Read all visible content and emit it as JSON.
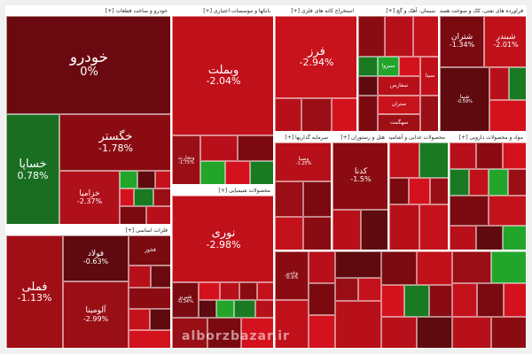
{
  "colors": {
    "dark_red": "#7a0a10",
    "red": "#b7101a",
    "bright_red": "#d3121e",
    "maroon": "#5e0a0e",
    "green": "#1a7a22",
    "bright_green": "#23a52c"
  },
  "sectors": {
    "auto": "خودرو و ساخت قطعات [+]",
    "banks": "بانکها و موسسات اعتباری [+]",
    "oil": "استخراج کانه های فلزی [+]",
    "cement": "سیمان، آهک و گچ [+]",
    "refinery": "فراورده های نفتی، کک و سوخت هسته ای [+]",
    "metals": "فلزات اساسی [+]",
    "chemicals": "محصولات شیمیایی [+]",
    "investment": "سرمایه گذاریها [+]",
    "holdings": "هتل و رستوران [+]",
    "food": "محصولات غذایی و آشامیدنی [+]",
    "pharma": "مواد و محصولات دارویی [+]"
  },
  "tiles": {
    "khodro": {
      "name": "خودرو",
      "pct": "0%"
    },
    "khegostar": {
      "name": "خگستر",
      "pct": "-1.78%"
    },
    "khesapa": {
      "name": "خساپا",
      "pct": "0.78%"
    },
    "kharamia": {
      "name": "خزامیا",
      "pct": "-2.37%"
    },
    "vebmellat": {
      "name": "وبملت",
      "pct": "-2.04%"
    },
    "vtejarat": {
      "name": "وتجارت",
      "pct": "-1.75%"
    },
    "far": {
      "name": "فرز",
      "pct": "-2.94%"
    },
    "shatran": {
      "name": "شتران",
      "pct": "-1.34%"
    },
    "shebandar": {
      "name": "شبندر",
      "pct": "-2.01%"
    },
    "shpna": {
      "name": "شپنا",
      "pct": "-0.59%"
    },
    "fameli": {
      "name": "فملی",
      "pct": "-1.13%"
    },
    "folad": {
      "name": "فولاد",
      "pct": "-0.63%"
    },
    "foulad2": {
      "name": "فخوز",
      "pct": ""
    },
    "alomina": {
      "name": "آلومینا",
      "pct": "-2.99%"
    },
    "nouri": {
      "name": "نوری",
      "pct": "-2.98%"
    },
    "gadna": {
      "name": "کدنا",
      "pct": "-1.5%"
    },
    "vsapa": {
      "name": "وصبا",
      "pct": "-1.25%"
    },
    "shebesh": {
      "name": "شبریز",
      "pct": "-0.34%"
    },
    "vaghadir": {
      "name": "وغدیر",
      "pct": "-0.9%"
    },
    "sakht": {
      "name": "سبزوا",
      "pct": ""
    },
    "sina": {
      "name": "سینا",
      "pct": ""
    },
    "sterol": {
      "name": "سفارس",
      "pct": ""
    },
    "setran": {
      "name": "ستران",
      "pct": ""
    },
    "sehgmat": {
      "name": "سهگمت",
      "pct": ""
    }
  },
  "watermark": "alborzbazar.ir"
}
